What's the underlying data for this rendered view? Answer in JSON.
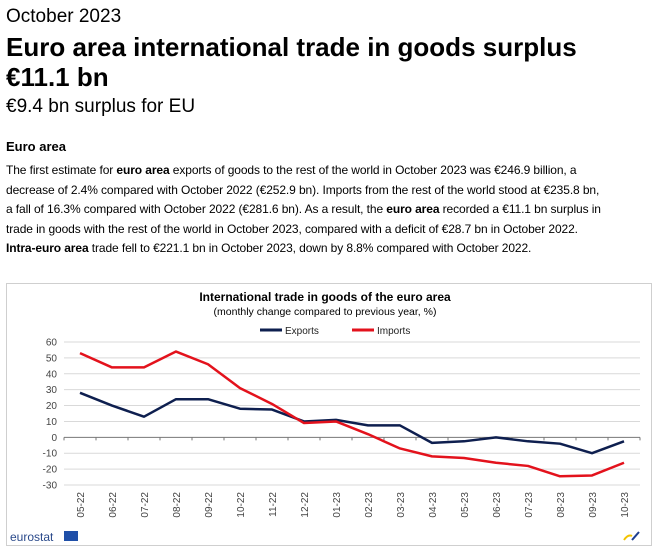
{
  "header": {
    "date": "October 2023",
    "title": "Euro area international trade in goods surplus €11.1 bn",
    "title_line1": "Euro area international trade in goods surplus",
    "title_line2": "€11.1 bn",
    "subtitle": "€9.4 bn surplus for EU"
  },
  "section": {
    "heading": "Euro area",
    "lines": [
      [
        {
          "t": "The first estimate for "
        },
        {
          "t": "euro area",
          "b": true
        },
        {
          "t": " exports of goods to the rest of the world in October 2023 was €246.9 billion, a"
        }
      ],
      [
        {
          "t": "decrease of 2.4% compared with October 2022 (€252.9 bn). Imports from the rest of the world stood at €235.8 bn,"
        }
      ],
      [
        {
          "t": "a fall of 16.3% compared with October 2022 (€281.6 bn). As a result, the "
        },
        {
          "t": "euro area",
          "b": true
        },
        {
          "t": " recorded a €11.1 bn surplus in"
        }
      ],
      [
        {
          "t": "trade in goods with the rest of the world in October 2023, compared with a deficit of €28.7 bn in October 2022."
        }
      ],
      [
        {
          "t": "Intra-euro area",
          "b": true
        },
        {
          "t": " trade fell to €221.1 bn in October 2023, down by 8.8% compared with October 2022."
        }
      ]
    ]
  },
  "footer": {
    "logo": "eurostat"
  },
  "chart_data": {
    "type": "line",
    "title": "International trade in goods of the euro area",
    "subtitle": "(monthly change compared to previous year, %)",
    "xlabel": "",
    "ylabel": "",
    "ylim": [
      -30,
      60
    ],
    "yticks": [
      60,
      50,
      40,
      30,
      20,
      10,
      0,
      -10,
      -20,
      -30
    ],
    "grid": true,
    "legend": "top-center",
    "categories": [
      "05-22",
      "06-22",
      "07-22",
      "08-22",
      "09-22",
      "10-22",
      "11-22",
      "12-22",
      "01-23",
      "02-23",
      "03-23",
      "04-23",
      "05-23",
      "06-23",
      "07-23",
      "08-23",
      "09-23",
      "10-23"
    ],
    "series": [
      {
        "name": "Exports",
        "color": "#0e1f4f",
        "values": [
          28,
          20,
          13,
          24,
          24,
          18,
          17.5,
          10,
          11,
          7.5,
          7.5,
          -3.5,
          -2.5,
          0,
          -2.5,
          -4,
          -10,
          -2.5
        ]
      },
      {
        "name": "Imports",
        "color": "#e3121c",
        "values": [
          53,
          44,
          44,
          54,
          46,
          31,
          21,
          9,
          10,
          2,
          -7,
          -12,
          -13,
          -16,
          -18,
          -24.5,
          -24,
          -16
        ]
      }
    ]
  }
}
